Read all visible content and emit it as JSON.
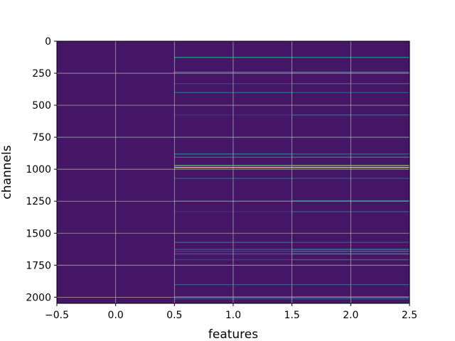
{
  "chart_data": {
    "type": "heatmap",
    "title": "",
    "xlabel": "features",
    "ylabel": "channels",
    "xlim": [
      -0.5,
      2.5
    ],
    "ylim": [
      2048,
      0
    ],
    "y_inverted": true,
    "grid": true,
    "colormap": "viridis",
    "columns": [
      0,
      1,
      2
    ],
    "x_ticks": [
      {
        "value": -0.5,
        "label": "−0.5"
      },
      {
        "value": 0.0,
        "label": "0.0"
      },
      {
        "value": 0.5,
        "label": "0.5"
      },
      {
        "value": 1.0,
        "label": "1.0"
      },
      {
        "value": 1.5,
        "label": "1.5"
      },
      {
        "value": 2.0,
        "label": "2.0"
      },
      {
        "value": 2.5,
        "label": "2.5"
      }
    ],
    "y_ticks": [
      {
        "value": 0,
        "label": "0"
      },
      {
        "value": 250,
        "label": "250"
      },
      {
        "value": 500,
        "label": "500"
      },
      {
        "value": 750,
        "label": "750"
      },
      {
        "value": 1000,
        "label": "1000"
      },
      {
        "value": 1250,
        "label": "1250"
      },
      {
        "value": 1500,
        "label": "1500"
      },
      {
        "value": 1750,
        "label": "1750"
      },
      {
        "value": 2000,
        "label": "2000"
      }
    ],
    "background_value": 0.06,
    "bright_rows": [
      {
        "channel": 125,
        "values": [
          0.05,
          0.55,
          0.5
        ]
      },
      {
        "channel": 240,
        "values": [
          0.05,
          0.4,
          0.45
        ]
      },
      {
        "channel": 330,
        "values": [
          0.05,
          0.2,
          0.35
        ]
      },
      {
        "channel": 400,
        "values": [
          0.05,
          0.35,
          0.25
        ]
      },
      {
        "channel": 575,
        "values": [
          0.05,
          0.15,
          0.35
        ]
      },
      {
        "channel": 750,
        "values": [
          0.15,
          0.2,
          0.2
        ]
      },
      {
        "channel": 880,
        "values": [
          0.05,
          0.45,
          0.35
        ]
      },
      {
        "channel": 905,
        "values": [
          0.05,
          0.4,
          0.45
        ]
      },
      {
        "channel": 970,
        "values": [
          0.05,
          0.75,
          0.8
        ]
      },
      {
        "channel": 985,
        "values": [
          0.05,
          0.95,
          0.95
        ]
      },
      {
        "channel": 1070,
        "values": [
          0.05,
          0.3,
          0.25
        ]
      },
      {
        "channel": 1245,
        "values": [
          0.05,
          0.2,
          0.4
        ]
      },
      {
        "channel": 1330,
        "values": [
          0.05,
          0.15,
          0.3
        ]
      },
      {
        "channel": 1570,
        "values": [
          0.05,
          0.35,
          0.25
        ]
      },
      {
        "channel": 1625,
        "values": [
          0.05,
          0.3,
          0.5
        ]
      },
      {
        "channel": 1640,
        "values": [
          0.05,
          0.2,
          0.45
        ]
      },
      {
        "channel": 1660,
        "values": [
          0.05,
          0.3,
          0.55
        ]
      },
      {
        "channel": 1705,
        "values": [
          0.05,
          0.2,
          0.35
        ]
      },
      {
        "channel": 1900,
        "values": [
          0.05,
          0.3,
          0.3
        ]
      },
      {
        "channel": 1995,
        "values": [
          0.05,
          0.4,
          0.45
        ]
      },
      {
        "channel": 2010,
        "values": [
          0.05,
          0.25,
          0.3
        ]
      }
    ]
  }
}
